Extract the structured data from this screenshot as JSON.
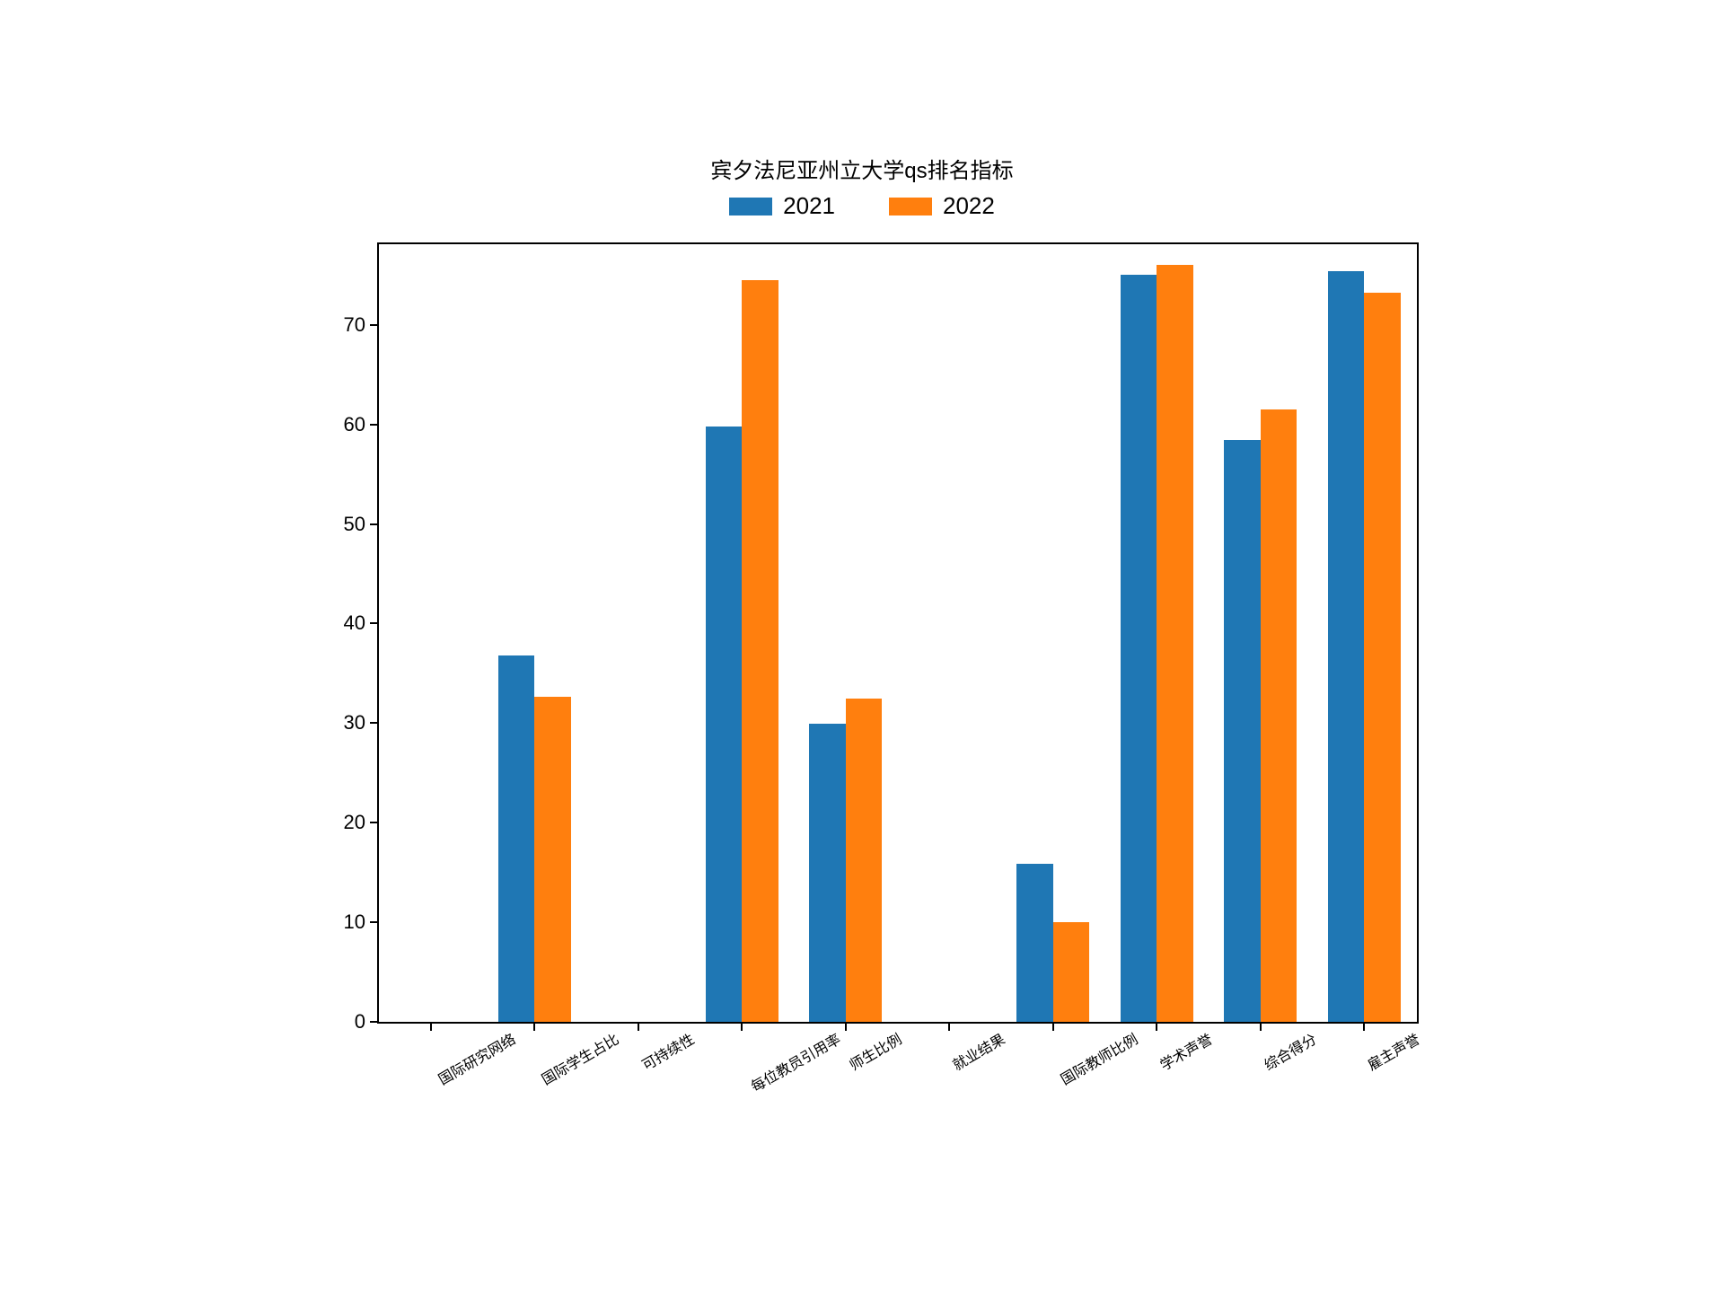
{
  "chart": {
    "type": "bar",
    "title": "宾夕法尼亚州立大学qs排名指标",
    "title_fontsize": 24,
    "title_color": "#000000",
    "background_color": "#ffffff",
    "plot_border_color": "#000000",
    "plot_border_width": 2.5,
    "categories": [
      "国际研究网络",
      "国际学生占比",
      "可持续性",
      "每位教员引用率",
      "师生比例",
      "就业结果",
      "国际教师比例",
      "学术声誉",
      "综合得分",
      "雇主声誉"
    ],
    "series": [
      {
        "name": "2021",
        "color": "#1f77b4",
        "values": [
          0,
          36.8,
          0,
          59.8,
          29.9,
          0,
          15.9,
          75.0,
          58.4,
          75.4
        ]
      },
      {
        "name": "2022",
        "color": "#ff7f0e",
        "values": [
          0,
          32.6,
          0,
          74.5,
          32.5,
          0,
          10.0,
          76.0,
          61.5,
          73.2
        ]
      }
    ],
    "ylim": [
      0,
      78
    ],
    "yticks": [
      0,
      10,
      20,
      30,
      40,
      50,
      60,
      70
    ],
    "ytick_fontsize": 22,
    "xtick_fontsize": 16,
    "xtick_rotation": -30,
    "legend_fontsize": 26,
    "bar_group_width": 0.7,
    "bar_width_ratio": 0.35
  }
}
